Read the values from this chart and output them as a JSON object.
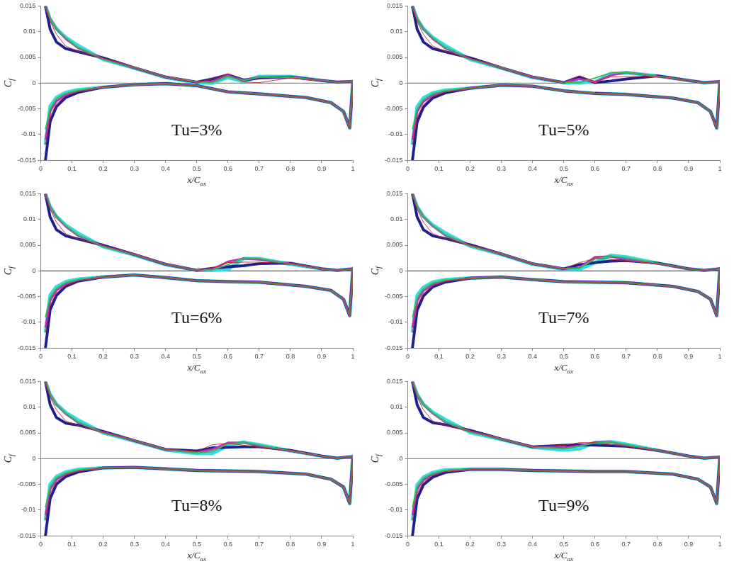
{
  "chart_data": [
    {
      "type": "line",
      "xlabel": "x/C$_{ax}$",
      "ylabel": "C$_{f}$",
      "annotations": [
        "Tu=3%"
      ],
      "xlim": [
        0,
        1
      ],
      "ylim": [
        -0.015,
        0.015
      ],
      "xticks": [
        0,
        0.1,
        0.2,
        0.3,
        0.4,
        0.5,
        0.6,
        0.7,
        0.8,
        0.9,
        1
      ],
      "yticks": [
        -0.015,
        -0.01,
        -0.005,
        0,
        0.005,
        0.01,
        0.015
      ],
      "grid": false,
      "legend": false,
      "marker": "none",
      "line_style": "solid",
      "ref_lines": [
        {
          "axis": "y",
          "value": 0,
          "color": "#888888"
        }
      ],
      "x": [
        0.015,
        0.03,
        0.05,
        0.08,
        0.12,
        0.2,
        0.3,
        0.4,
        0.5,
        0.55,
        0.6,
        0.65,
        0.7,
        0.8,
        0.9,
        0.95,
        1,
        0.99,
        0.97,
        0.93,
        0.85,
        0.7,
        0.6,
        0.5,
        0.4,
        0.3,
        0.2,
        0.12,
        0.08,
        0.05,
        0.03,
        0.015
      ],
      "series": [
        {
          "color": "#cc2222",
          "values": [
            0.015,
            0.012,
            0.0095,
            0.0072,
            0.0062,
            0.0048,
            0.003,
            0.0012,
            0.0001,
            0.0008,
            0.0018,
            0.0002,
            0.0001,
            0.001,
            0.0005,
            0.0002,
            0.0003,
            -0.0087,
            -0.0055,
            -0.0038,
            -0.0028,
            -0.0021,
            -0.0017,
            -0.0005,
            -0.0001,
            -0.0003,
            -0.0008,
            -0.0016,
            -0.0025,
            -0.004,
            -0.0065,
            -0.012
          ]
        },
        {
          "color": "#33bb55",
          "values": [
            0.015,
            0.0125,
            0.0105,
            0.0088,
            0.0069,
            0.0046,
            0.003,
            0.0012,
            0.0002,
            0.0001,
            0.0013,
            0.0005,
            0.0012,
            0.0012,
            0.0005,
            0.0002,
            0.0003,
            -0.0087,
            -0.0055,
            -0.0038,
            -0.0028,
            -0.0021,
            -0.0017,
            -0.0005,
            -0.0001,
            -0.0003,
            -0.0008,
            -0.0014,
            -0.002,
            -0.003,
            -0.005,
            -0.009
          ]
        },
        {
          "color": "#bb33bb",
          "values": [
            0.015,
            0.0125,
            0.0105,
            0.0086,
            0.0068,
            0.0047,
            0.003,
            0.0012,
            0.0002,
            0.0003,
            0.0015,
            0.0005,
            0.0012,
            0.0011,
            0.0005,
            0.0002,
            0.0003,
            -0.0087,
            -0.0055,
            -0.0038,
            -0.0028,
            -0.0021,
            -0.0017,
            -0.0005,
            -0.0001,
            -0.0003,
            -0.0008,
            -0.0015,
            -0.0023,
            -0.0035,
            -0.0055,
            -0.011
          ]
        },
        {
          "color": "#1f1f8f",
          "values": [
            0.015,
            0.0105,
            0.008,
            0.0067,
            0.0061,
            0.0049,
            0.003,
            0.0012,
            0.0002,
            0.0008,
            0.0016,
            0.0006,
            0.001,
            0.0012,
            0.0005,
            0.0002,
            0.0003,
            -0.0087,
            -0.0055,
            -0.0038,
            -0.0028,
            -0.0021,
            -0.0017,
            -0.0005,
            -0.0001,
            -0.0003,
            -0.0008,
            -0.0018,
            -0.0028,
            -0.0046,
            -0.0075,
            -0.015
          ]
        },
        {
          "color": "#33dddd",
          "values": [
            0.015,
            0.0125,
            0.0106,
            0.0089,
            0.0073,
            0.0046,
            0.0029,
            0.0011,
            0.0001,
            0,
            0.0011,
            0.0003,
            0.0013,
            0.0013,
            0.0005,
            0.0002,
            0.0003,
            -0.0087,
            -0.0055,
            -0.0038,
            -0.0028,
            -0.0021,
            -0.0017,
            -0.0005,
            -0.0001,
            -0.0003,
            -0.0008,
            -0.0013,
            -0.0018,
            -0.0028,
            -0.0045,
            -0.012
          ]
        }
      ]
    },
    {
      "type": "line",
      "xlabel": "x/C$_{ax}$",
      "ylabel": "C$_{f}$",
      "annotations": [
        "Tu=5%"
      ],
      "xlim": [
        0,
        1
      ],
      "ylim": [
        -0.015,
        0.015
      ],
      "xticks": [
        0,
        0.1,
        0.2,
        0.3,
        0.4,
        0.5,
        0.6,
        0.7,
        0.8,
        0.9,
        1
      ],
      "yticks": [
        -0.015,
        -0.01,
        -0.005,
        0,
        0.005,
        0.01,
        0.015
      ],
      "grid": false,
      "legend": false,
      "marker": "none",
      "line_style": "solid",
      "ref_lines": [
        {
          "axis": "y",
          "value": 0,
          "color": "#888888"
        }
      ],
      "x": [
        0.015,
        0.03,
        0.05,
        0.08,
        0.12,
        0.2,
        0.3,
        0.4,
        0.5,
        0.55,
        0.6,
        0.65,
        0.7,
        0.8,
        0.9,
        0.95,
        1,
        0.99,
        0.97,
        0.93,
        0.85,
        0.7,
        0.6,
        0.5,
        0.4,
        0.3,
        0.2,
        0.12,
        0.08,
        0.05,
        0.03,
        0.015
      ],
      "series": [
        {
          "color": "#cc2222",
          "values": [
            0.015,
            0.012,
            0.0095,
            0.0072,
            0.0062,
            0.0048,
            0.003,
            0.0012,
            0.0001,
            0.0014,
            0.0003,
            0.0012,
            0.0013,
            0.0012,
            0.0005,
            0.0001,
            0.0003,
            -0.0087,
            -0.0055,
            -0.0038,
            -0.0029,
            -0.0022,
            -0.002,
            -0.0015,
            -0.0006,
            -0.0004,
            -0.001,
            -0.0017,
            -0.0026,
            -0.0042,
            -0.0066,
            -0.012
          ]
        },
        {
          "color": "#33bb55",
          "values": [
            0.015,
            0.0125,
            0.0105,
            0.0088,
            0.0069,
            0.0046,
            0.003,
            0.0012,
            0.0001,
            0.0001,
            0.001,
            0.002,
            0.0021,
            0.0013,
            0.0005,
            0.0001,
            0.0003,
            -0.0087,
            -0.0055,
            -0.0038,
            -0.0029,
            -0.0022,
            -0.002,
            -0.0015,
            -0.0006,
            -0.0004,
            -0.001,
            -0.0015,
            -0.0021,
            -0.0032,
            -0.0051,
            -0.009
          ]
        },
        {
          "color": "#bb33bb",
          "values": [
            0.015,
            0.0125,
            0.0105,
            0.0086,
            0.0068,
            0.0047,
            0.003,
            0.0012,
            0.0001,
            0.0008,
            0.0002,
            0.0015,
            0.0021,
            0.0013,
            0.0005,
            0.0001,
            0.0003,
            -0.0087,
            -0.0055,
            -0.0038,
            -0.0029,
            -0.0022,
            -0.002,
            -0.0015,
            -0.0006,
            -0.0004,
            -0.001,
            -0.0016,
            -0.0024,
            -0.0036,
            -0.0056,
            -0.011
          ]
        },
        {
          "color": "#1f1f8f",
          "values": [
            0.015,
            0.0105,
            0.008,
            0.0067,
            0.0061,
            0.0049,
            0.003,
            0.0012,
            0.0001,
            0.0012,
            0.0001,
            0.0004,
            0.0008,
            0.0014,
            0.0005,
            0.0001,
            0.0003,
            -0.0087,
            -0.0055,
            -0.0038,
            -0.0029,
            -0.0022,
            -0.002,
            -0.0015,
            -0.0006,
            -0.0004,
            -0.001,
            -0.0019,
            -0.0029,
            -0.0047,
            -0.0076,
            -0.015
          ]
        },
        {
          "color": "#33dddd",
          "values": [
            0.015,
            0.0125,
            0.0106,
            0.0089,
            0.0073,
            0.0046,
            0.0029,
            0.0011,
            0.0001,
            0.0001,
            0.0002,
            0.0018,
            0.002,
            0.0014,
            0.0005,
            0.0001,
            0.0003,
            -0.0087,
            -0.0055,
            -0.0038,
            -0.0029,
            -0.0022,
            -0.002,
            -0.0015,
            -0.0006,
            -0.0004,
            -0.001,
            -0.0014,
            -0.0019,
            -0.0029,
            -0.0046,
            -0.012
          ]
        }
      ]
    },
    {
      "type": "line",
      "xlabel": "x/C$_{ax}$",
      "ylabel": "C$_{f}$",
      "annotations": [
        "Tu=6%"
      ],
      "xlim": [
        0,
        1
      ],
      "ylim": [
        -0.015,
        0.015
      ],
      "xticks": [
        0,
        0.1,
        0.2,
        0.3,
        0.4,
        0.5,
        0.6,
        0.7,
        0.8,
        0.9,
        1
      ],
      "yticks": [
        -0.015,
        -0.01,
        -0.005,
        0,
        0.005,
        0.01,
        0.015
      ],
      "grid": false,
      "legend": false,
      "marker": "none",
      "line_style": "solid",
      "ref_lines": [
        {
          "axis": "y",
          "value": 0,
          "color": "#555555"
        }
      ],
      "x": [
        0.015,
        0.03,
        0.05,
        0.08,
        0.12,
        0.2,
        0.3,
        0.4,
        0.5,
        0.55,
        0.6,
        0.65,
        0.7,
        0.8,
        0.9,
        0.95,
        1,
        0.99,
        0.97,
        0.93,
        0.85,
        0.7,
        0.6,
        0.5,
        0.4,
        0.3,
        0.2,
        0.12,
        0.08,
        0.05,
        0.03,
        0.015
      ],
      "series": [
        {
          "color": "#cc2222",
          "values": [
            0.015,
            0.012,
            0.0095,
            0.0072,
            0.0062,
            0.0049,
            0.0032,
            0.0013,
            0.0001,
            0.0006,
            0.0016,
            0.0017,
            0.0017,
            0.0014,
            0.0004,
            0.0001,
            0.0004,
            -0.0087,
            -0.0055,
            -0.0038,
            -0.003,
            -0.0022,
            -0.0021,
            -0.0019,
            -0.0013,
            -0.0008,
            -0.0012,
            -0.0019,
            -0.0028,
            -0.0043,
            -0.0067,
            -0.012
          ]
        },
        {
          "color": "#33bb55",
          "values": [
            0.015,
            0.0125,
            0.0105,
            0.0088,
            0.0069,
            0.0047,
            0.0032,
            0.0013,
            0.0001,
            0.0002,
            0.0012,
            0.0025,
            0.0024,
            0.0013,
            0.0004,
            0.0001,
            0.0004,
            -0.0087,
            -0.0055,
            -0.0038,
            -0.003,
            -0.0022,
            -0.0021,
            -0.0019,
            -0.0013,
            -0.0008,
            -0.0012,
            -0.0017,
            -0.0023,
            -0.0034,
            -0.0052,
            -0.009
          ]
        },
        {
          "color": "#bb33bb",
          "values": [
            0.015,
            0.0125,
            0.0105,
            0.0086,
            0.0068,
            0.0048,
            0.0032,
            0.0013,
            0.0001,
            0.0003,
            0.0018,
            0.0024,
            0.0022,
            0.0014,
            0.0004,
            0.0001,
            0.0004,
            -0.0087,
            -0.0055,
            -0.0038,
            -0.003,
            -0.0022,
            -0.0021,
            -0.0019,
            -0.0013,
            -0.0008,
            -0.0012,
            -0.0018,
            -0.0026,
            -0.0038,
            -0.0058,
            -0.011
          ]
        },
        {
          "color": "#1f1f8f",
          "values": [
            0.015,
            0.0105,
            0.008,
            0.0068,
            0.0062,
            0.005,
            0.0032,
            0.0013,
            0.0001,
            0.0005,
            0.0008,
            0.001,
            0.0014,
            0.0015,
            0.0004,
            0.0001,
            0.0004,
            -0.0087,
            -0.0055,
            -0.0038,
            -0.003,
            -0.0022,
            -0.0021,
            -0.0019,
            -0.0013,
            -0.0008,
            -0.0012,
            -0.002,
            -0.003,
            -0.0048,
            -0.0076,
            -0.015
          ]
        },
        {
          "color": "#33dddd",
          "values": [
            0.015,
            0.0125,
            0.0106,
            0.0089,
            0.0073,
            0.0047,
            0.0031,
            0.0012,
            0.0001,
            0.0001,
            0.0003,
            0.0024,
            0.0024,
            0.0013,
            0.0004,
            0.0001,
            0.0004,
            -0.0087,
            -0.0055,
            -0.0038,
            -0.003,
            -0.0022,
            -0.0021,
            -0.0019,
            -0.0013,
            -0.0008,
            -0.0012,
            -0.0016,
            -0.0021,
            -0.0031,
            -0.0047,
            -0.012
          ]
        }
      ]
    },
    {
      "type": "line",
      "xlabel": "x/C$_{ax}$",
      "ylabel": "C$_{f}$",
      "annotations": [
        "Tu=7%"
      ],
      "xlim": [
        0,
        1
      ],
      "ylim": [
        -0.015,
        0.015
      ],
      "xticks": [
        0,
        0.1,
        0.2,
        0.3,
        0.4,
        0.5,
        0.6,
        0.7,
        0.8,
        0.9,
        1
      ],
      "yticks": [
        -0.015,
        -0.01,
        -0.005,
        0,
        0.005,
        0.01,
        0.015
      ],
      "grid": false,
      "legend": false,
      "marker": "none",
      "line_style": "solid",
      "ref_lines": [
        {
          "axis": "y",
          "value": 0,
          "color": "#555555"
        }
      ],
      "x": [
        0.015,
        0.03,
        0.05,
        0.08,
        0.12,
        0.2,
        0.3,
        0.4,
        0.5,
        0.55,
        0.6,
        0.65,
        0.7,
        0.8,
        0.9,
        0.95,
        1,
        0.99,
        0.97,
        0.93,
        0.85,
        0.7,
        0.6,
        0.5,
        0.4,
        0.3,
        0.2,
        0.12,
        0.08,
        0.05,
        0.03,
        0.015
      ],
      "series": [
        {
          "color": "#cc2222",
          "values": [
            0.015,
            0.012,
            0.0095,
            0.0072,
            0.0063,
            0.005,
            0.0033,
            0.0014,
            0.0004,
            0.0016,
            0.0024,
            0.0023,
            0.0019,
            0.0014,
            0.0004,
            0.0001,
            0.0004,
            -0.0087,
            -0.0055,
            -0.004,
            -0.003,
            -0.0023,
            -0.0022,
            -0.0021,
            -0.0017,
            -0.0012,
            -0.0014,
            -0.002,
            -0.0029,
            -0.0044,
            -0.0068,
            -0.012
          ]
        },
        {
          "color": "#33bb55",
          "values": [
            0.015,
            0.0125,
            0.0105,
            0.0088,
            0.007,
            0.0048,
            0.0033,
            0.0014,
            0.0004,
            0.0005,
            0.0023,
            0.0029,
            0.0025,
            0.0015,
            0.0004,
            0.0001,
            0.0004,
            -0.0087,
            -0.0055,
            -0.004,
            -0.003,
            -0.0023,
            -0.0022,
            -0.0021,
            -0.0017,
            -0.0012,
            -0.0014,
            -0.0018,
            -0.0024,
            -0.0035,
            -0.0053,
            -0.009
          ]
        },
        {
          "color": "#bb33bb",
          "values": [
            0.015,
            0.0125,
            0.0105,
            0.0087,
            0.0069,
            0.0049,
            0.0033,
            0.0014,
            0.0004,
            0.0006,
            0.0027,
            0.0028,
            0.0022,
            0.0014,
            0.0004,
            0.0001,
            0.0004,
            -0.0087,
            -0.0055,
            -0.004,
            -0.003,
            -0.0023,
            -0.0022,
            -0.0021,
            -0.0017,
            -0.0012,
            -0.0014,
            -0.0019,
            -0.0027,
            -0.0039,
            -0.0059,
            -0.011
          ]
        },
        {
          "color": "#1f1f8f",
          "values": [
            0.015,
            0.0105,
            0.008,
            0.0068,
            0.0063,
            0.0051,
            0.0033,
            0.0014,
            0.0004,
            0.0012,
            0.0016,
            0.0019,
            0.002,
            0.0015,
            0.0004,
            0.0001,
            0.0004,
            -0.0087,
            -0.0055,
            -0.004,
            -0.003,
            -0.0023,
            -0.0022,
            -0.0021,
            -0.0017,
            -0.0012,
            -0.0014,
            -0.0022,
            -0.0031,
            -0.0049,
            -0.0077,
            -0.015
          ]
        },
        {
          "color": "#33dddd",
          "values": [
            0.015,
            0.0125,
            0.0106,
            0.0089,
            0.0074,
            0.0048,
            0.0032,
            0.0013,
            0.0003,
            0.0003,
            0.0016,
            0.003,
            0.0027,
            0.0015,
            0.0004,
            0.0001,
            0.0004,
            -0.0087,
            -0.0055,
            -0.004,
            -0.003,
            -0.0023,
            -0.0022,
            -0.0021,
            -0.0017,
            -0.0012,
            -0.0014,
            -0.0017,
            -0.0022,
            -0.0032,
            -0.0048,
            -0.012
          ]
        }
      ]
    },
    {
      "type": "line",
      "xlabel": "x/C$_{ax}$",
      "ylabel": "C$_{f}$",
      "annotations": [
        "Tu=8%"
      ],
      "xlim": [
        0,
        1
      ],
      "ylim": [
        -0.015,
        0.015
      ],
      "xticks": [
        0,
        0.1,
        0.2,
        0.3,
        0.4,
        0.5,
        0.6,
        0.7,
        0.8,
        0.9,
        1
      ],
      "yticks": [
        -0.015,
        -0.01,
        -0.005,
        0,
        0.005,
        0.01,
        0.015
      ],
      "grid": false,
      "legend": false,
      "marker": "none",
      "line_style": "solid",
      "ref_lines": [
        {
          "axis": "y",
          "value": 0,
          "color": "#888888"
        }
      ],
      "x": [
        0.015,
        0.03,
        0.05,
        0.08,
        0.12,
        0.2,
        0.3,
        0.4,
        0.5,
        0.55,
        0.6,
        0.65,
        0.7,
        0.8,
        0.9,
        0.95,
        1,
        0.99,
        0.97,
        0.93,
        0.85,
        0.7,
        0.6,
        0.5,
        0.4,
        0.3,
        0.2,
        0.12,
        0.08,
        0.05,
        0.03,
        0.015
      ],
      "series": [
        {
          "color": "#cc2222",
          "values": [
            0.015,
            0.012,
            0.0095,
            0.0073,
            0.0064,
            0.0051,
            0.0035,
            0.0018,
            0.0014,
            0.0027,
            0.003,
            0.0026,
            0.0022,
            0.0015,
            0.0005,
            0.0001,
            0.0004,
            -0.0087,
            -0.0055,
            -0.004,
            -0.003,
            -0.0025,
            -0.0024,
            -0.0023,
            -0.002,
            -0.0017,
            -0.0018,
            -0.0024,
            -0.0032,
            -0.0045,
            -0.0068,
            -0.012
          ]
        },
        {
          "color": "#33bb55",
          "values": [
            0.015,
            0.0125,
            0.0105,
            0.0088,
            0.0071,
            0.005,
            0.0035,
            0.0018,
            0.0011,
            0.0014,
            0.0029,
            0.0031,
            0.0026,
            0.0015,
            0.0005,
            0.0001,
            0.0004,
            -0.0087,
            -0.0055,
            -0.004,
            -0.003,
            -0.0025,
            -0.0024,
            -0.0023,
            -0.002,
            -0.0017,
            -0.0018,
            -0.0022,
            -0.0028,
            -0.0037,
            -0.0055,
            -0.0095
          ]
        },
        {
          "color": "#bb33bb",
          "values": [
            0.015,
            0.0125,
            0.0105,
            0.0087,
            0.007,
            0.0051,
            0.0035,
            0.0018,
            0.0012,
            0.0018,
            0.0031,
            0.0031,
            0.0025,
            0.0015,
            0.0005,
            0.0001,
            0.0004,
            -0.0087,
            -0.0055,
            -0.004,
            -0.003,
            -0.0025,
            -0.0024,
            -0.0023,
            -0.002,
            -0.0017,
            -0.0018,
            -0.0023,
            -0.003,
            -0.0041,
            -0.006,
            -0.011
          ]
        },
        {
          "color": "#1f1f8f",
          "values": [
            0.015,
            0.0105,
            0.008,
            0.0069,
            0.0065,
            0.0053,
            0.0035,
            0.0018,
            0.0015,
            0.0021,
            0.0022,
            0.0023,
            0.0023,
            0.0016,
            0.0005,
            0.0001,
            0.0004,
            -0.0087,
            -0.0055,
            -0.004,
            -0.003,
            -0.0025,
            -0.0024,
            -0.0023,
            -0.002,
            -0.0017,
            -0.0018,
            -0.0026,
            -0.0035,
            -0.005,
            -0.0078,
            -0.015
          ]
        },
        {
          "color": "#33dddd",
          "values": [
            0.015,
            0.0125,
            0.0106,
            0.009,
            0.0075,
            0.005,
            0.0034,
            0.0017,
            0.001,
            0.001,
            0.0026,
            0.0032,
            0.0027,
            0.0015,
            0.0005,
            0.0001,
            0.0004,
            -0.0087,
            -0.0055,
            -0.004,
            -0.003,
            -0.0025,
            -0.0024,
            -0.0023,
            -0.002,
            -0.0017,
            -0.0018,
            -0.0021,
            -0.0026,
            -0.0035,
            -0.005,
            -0.012
          ]
        }
      ]
    },
    {
      "type": "line",
      "xlabel": "x/C$_{ax}$",
      "ylabel": "C$_{f}$",
      "annotations": [
        "Tu=9%"
      ],
      "xlim": [
        0,
        1
      ],
      "ylim": [
        -0.015,
        0.015
      ],
      "xticks": [
        0,
        0.1,
        0.2,
        0.3,
        0.4,
        0.5,
        0.6,
        0.7,
        0.8,
        0.9,
        1
      ],
      "yticks": [
        -0.015,
        -0.01,
        -0.005,
        0,
        0.005,
        0.01,
        0.015
      ],
      "grid": false,
      "legend": false,
      "marker": "none",
      "line_style": "solid",
      "ref_lines": [
        {
          "axis": "y",
          "value": 0,
          "color": "#888888"
        }
      ],
      "x": [
        0.015,
        0.03,
        0.05,
        0.08,
        0.12,
        0.2,
        0.3,
        0.4,
        0.5,
        0.55,
        0.6,
        0.65,
        0.7,
        0.8,
        0.9,
        0.95,
        1,
        0.99,
        0.97,
        0.93,
        0.85,
        0.7,
        0.6,
        0.5,
        0.4,
        0.3,
        0.2,
        0.12,
        0.08,
        0.05,
        0.03,
        0.015
      ],
      "series": [
        {
          "color": "#cc2222",
          "values": [
            0.015,
            0.012,
            0.0095,
            0.0073,
            0.0065,
            0.0053,
            0.0038,
            0.0023,
            0.0026,
            0.0031,
            0.0031,
            0.0028,
            0.0024,
            0.0016,
            0.0005,
            0.0001,
            0.0003,
            -0.0087,
            -0.0055,
            -0.004,
            -0.003,
            -0.0025,
            -0.0025,
            -0.0024,
            -0.0023,
            -0.0021,
            -0.0021,
            -0.0025,
            -0.0033,
            -0.0046,
            -0.0068,
            -0.012
          ]
        },
        {
          "color": "#33bb55",
          "values": [
            0.015,
            0.0125,
            0.0105,
            0.0089,
            0.0072,
            0.0052,
            0.0038,
            0.0023,
            0.0019,
            0.0024,
            0.0031,
            0.0032,
            0.0027,
            0.0016,
            0.0005,
            0.0001,
            0.0003,
            -0.0087,
            -0.0055,
            -0.004,
            -0.003,
            -0.0025,
            -0.0025,
            -0.0024,
            -0.0023,
            -0.0021,
            -0.0021,
            -0.0023,
            -0.0029,
            -0.0038,
            -0.0055,
            -0.0095
          ]
        },
        {
          "color": "#bb33bb",
          "values": [
            0.015,
            0.0125,
            0.0105,
            0.0088,
            0.0071,
            0.0053,
            0.0038,
            0.0023,
            0.0021,
            0.0025,
            0.0032,
            0.0032,
            0.0026,
            0.0016,
            0.0005,
            0.0001,
            0.0003,
            -0.0087,
            -0.0055,
            -0.004,
            -0.003,
            -0.0025,
            -0.0025,
            -0.0024,
            -0.0023,
            -0.0021,
            -0.0021,
            -0.0024,
            -0.0031,
            -0.0042,
            -0.006,
            -0.011
          ]
        },
        {
          "color": "#1f1f8f",
          "values": [
            0.015,
            0.0105,
            0.008,
            0.007,
            0.0066,
            0.0055,
            0.0038,
            0.0023,
            0.0026,
            0.0027,
            0.0026,
            0.0025,
            0.0024,
            0.0016,
            0.0005,
            0.0001,
            0.0003,
            -0.0087,
            -0.0055,
            -0.004,
            -0.003,
            -0.0025,
            -0.0025,
            -0.0024,
            -0.0023,
            -0.0021,
            -0.0021,
            -0.0027,
            -0.0036,
            -0.0051,
            -0.0078,
            -0.015
          ]
        },
        {
          "color": "#33dddd",
          "values": [
            0.015,
            0.0125,
            0.0106,
            0.009,
            0.0076,
            0.0051,
            0.0037,
            0.0022,
            0.0017,
            0.0019,
            0.0031,
            0.0033,
            0.0028,
            0.0016,
            0.0005,
            0.0001,
            0.0003,
            -0.0087,
            -0.0055,
            -0.004,
            -0.003,
            -0.0025,
            -0.0025,
            -0.0024,
            -0.0023,
            -0.0021,
            -0.0021,
            -0.0022,
            -0.0027,
            -0.0036,
            -0.0051,
            -0.012
          ]
        }
      ]
    }
  ]
}
